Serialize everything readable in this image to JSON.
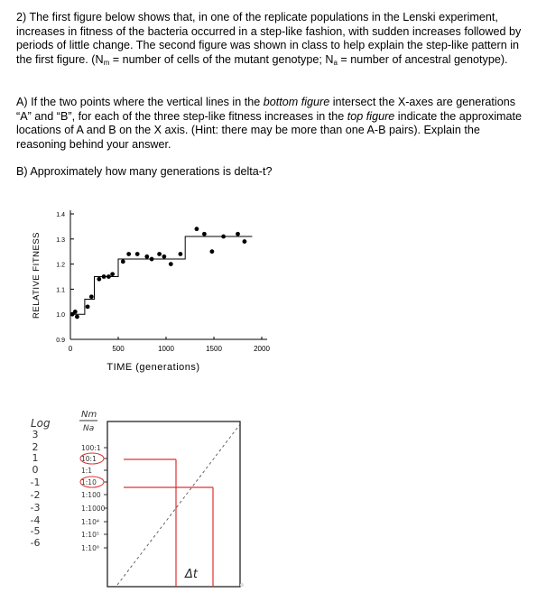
{
  "question": {
    "intro_1": "2) The first figure below shows that, in one of the replicate populations in the Lenski experiment, increases in fitness of the bacteria occurred in a step-like fashion, with sudden increases followed by periods of little change.  The second figure was shown in class to help explain the step-like pattern in the first figure.  (N",
    "sub_m": "m",
    "intro_2": " = number of cells of the mutant genotype; N",
    "sub_a": "a",
    "intro_3": " = number of ancestral genotype).",
    "a_1": "A) If the two points where the vertical lines in the ",
    "a_bottom": "bottom figure",
    "a_2": " intersect the X-axes are generations “A” and “B”, for each of the three step-like fitness increases in the ",
    "a_top": "top figure",
    "a_3": " indicate the approximate locations of A and B on the X axis.  (Hint: there may be more than one A-B pairs).  Explain the reasoning behind your answer.",
    "b": "B) Approximately how many generations is delta-t?"
  },
  "chart_data": [
    {
      "type": "scatter",
      "ylabel": "RELATIVE FITNESS",
      "xlabel": "TIME (generations)",
      "xlim": [
        0,
        2000
      ],
      "ylim": [
        0.9,
        1.4
      ],
      "x_ticks": [
        "0",
        "500",
        "1000",
        "1500",
        "2000"
      ],
      "y_ticks": [
        "0.9",
        "1.0",
        "1.1",
        "1.2",
        "1.3",
        "1.4"
      ],
      "points": [
        {
          "x": 20,
          "y": 1.0
        },
        {
          "x": 50,
          "y": 1.01
        },
        {
          "x": 70,
          "y": 0.99
        },
        {
          "x": 180,
          "y": 1.03
        },
        {
          "x": 220,
          "y": 1.07
        },
        {
          "x": 300,
          "y": 1.14
        },
        {
          "x": 350,
          "y": 1.15
        },
        {
          "x": 400,
          "y": 1.15
        },
        {
          "x": 440,
          "y": 1.16
        },
        {
          "x": 550,
          "y": 1.21
        },
        {
          "x": 610,
          "y": 1.24
        },
        {
          "x": 700,
          "y": 1.24
        },
        {
          "x": 800,
          "y": 1.23
        },
        {
          "x": 850,
          "y": 1.22
        },
        {
          "x": 930,
          "y": 1.24
        },
        {
          "x": 980,
          "y": 1.23
        },
        {
          "x": 1050,
          "y": 1.2
        },
        {
          "x": 1150,
          "y": 1.24
        },
        {
          "x": 1320,
          "y": 1.34
        },
        {
          "x": 1400,
          "y": 1.32
        },
        {
          "x": 1480,
          "y": 1.25
        },
        {
          "x": 1600,
          "y": 1.31
        },
        {
          "x": 1750,
          "y": 1.32
        },
        {
          "x": 1820,
          "y": 1.29
        }
      ],
      "step_fit": [
        {
          "x": 0,
          "y": 1.0
        },
        {
          "x": 150,
          "y": 1.0
        },
        {
          "x": 150,
          "y": 1.06
        },
        {
          "x": 250,
          "y": 1.06
        },
        {
          "x": 250,
          "y": 1.15
        },
        {
          "x": 500,
          "y": 1.15
        },
        {
          "x": 500,
          "y": 1.22
        },
        {
          "x": 1200,
          "y": 1.22
        },
        {
          "x": 1200,
          "y": 1.31
        },
        {
          "x": 1900,
          "y": 1.31
        }
      ]
    },
    {
      "type": "line",
      "ylabel": "Log",
      "ylabel_2": "Nm",
      "ylabel_2_den": "Na",
      "y_ticks": [
        "3",
        "2",
        "1",
        "0",
        "-1",
        "-2",
        "-3",
        "-4",
        "-5",
        "-6"
      ],
      "ratio_ticks": [
        "100:1",
        "10:1",
        "1:1",
        "1:10",
        "1:100",
        "1:1000",
        "1:10⁴",
        "1:10⁵",
        "1:10⁶"
      ],
      "circled_ticks": [
        "10:1",
        "1:10"
      ],
      "x_annotation": "Δt",
      "lines": [
        "dashed diagonal",
        "red horizontal",
        "red vertical"
      ]
    }
  ]
}
